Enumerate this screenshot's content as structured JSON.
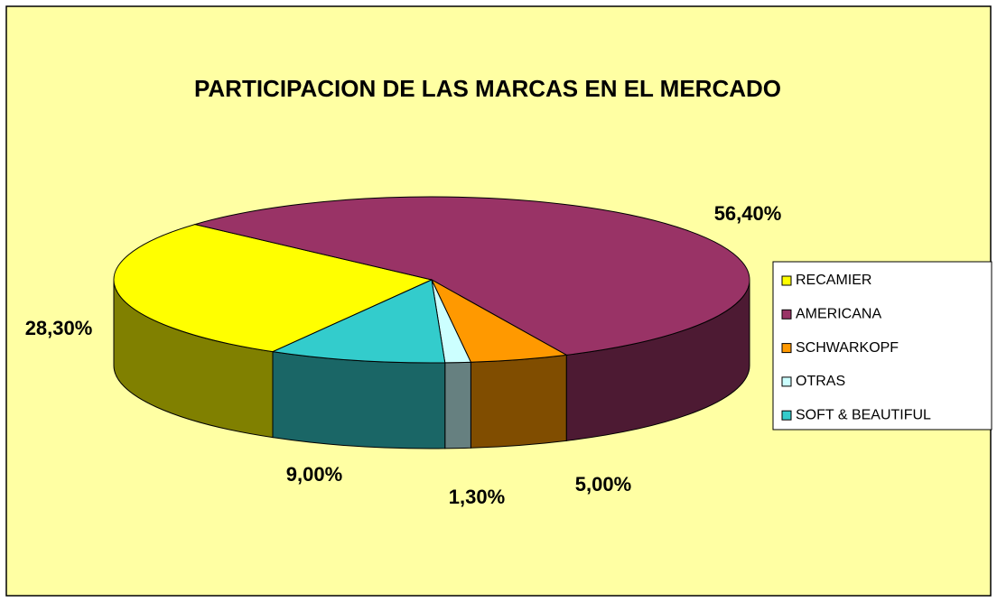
{
  "chart_data": {
    "type": "pie3d",
    "title": "PARTICIPACION DE LAS MARCAS EN EL MERCADO",
    "categories": [
      "RECAMIER",
      "AMERICANA",
      "SCHWARKOPF",
      "OTRAS",
      "SOFT & BEAUTIFUL"
    ],
    "values": [
      28.3,
      56.4,
      5.0,
      1.3,
      9.0
    ],
    "value_labels": [
      "28,30%",
      "56,40%",
      "5,00%",
      "1,30%",
      "9,00%"
    ],
    "colors": [
      "#ffff00",
      "#993366",
      "#ff9900",
      "#ccffff",
      "#33cccc"
    ],
    "legend": "right"
  }
}
